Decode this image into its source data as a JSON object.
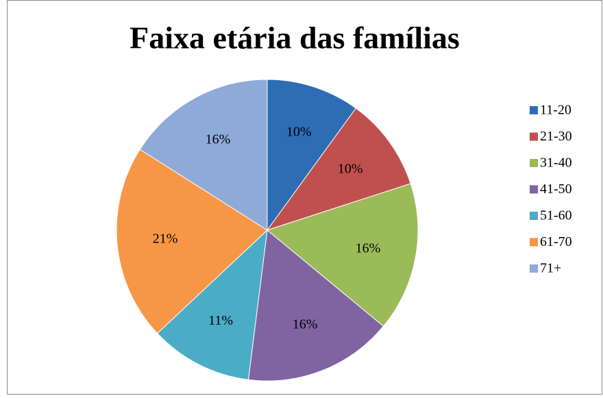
{
  "chart_data": {
    "type": "pie",
    "title": "Faixa etária das famílias",
    "categories": [
      "11-20",
      "21-30",
      "31-40",
      "41-50",
      "51-60",
      "61-70",
      "71+"
    ],
    "values": [
      10,
      10,
      16,
      16,
      11,
      21,
      16
    ],
    "value_labels": [
      "10%",
      "10%",
      "16%",
      "16%",
      "11%",
      "21%",
      "16%"
    ],
    "colors": [
      "#2e6db4",
      "#c0504d",
      "#9bbb59",
      "#8064a2",
      "#4bacc6",
      "#f79646",
      "#8eaad8"
    ],
    "legend": "right"
  }
}
